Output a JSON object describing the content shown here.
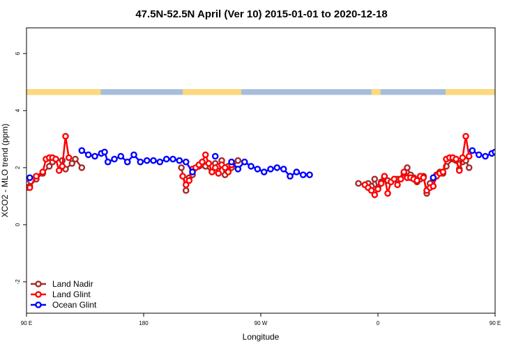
{
  "chart_data": {
    "type": "line",
    "title": "47.5N-52.5N April (Ver 10)   2015-01-01 to 2020-12-18",
    "xlabel": "Longitude",
    "ylabel": "XCO2 - MLO trend (ppm)",
    "xlim": [
      90,
      450
    ],
    "ylim": [
      -3.1,
      6.9
    ],
    "x_ticks": [
      {
        "value": 90,
        "label": "90 E"
      },
      {
        "value": 180,
        "label": "180"
      },
      {
        "value": 270,
        "label": "90 W"
      },
      {
        "value": 360,
        "label": "0"
      },
      {
        "value": 450,
        "label": "90 E"
      },
      {
        "value": 540,
        "label": "180"
      }
    ],
    "y_ticks": [
      {
        "value": -2,
        "label": "-2"
      },
      {
        "value": 0,
        "label": "0"
      },
      {
        "value": 2,
        "label": "2"
      },
      {
        "value": 4,
        "label": "4"
      },
      {
        "value": 6,
        "label": "6"
      }
    ],
    "legend_position": "bottom-left",
    "land_sea_band": {
      "y_range": [
        4.55,
        4.75
      ],
      "land_color": "#fcd97a",
      "ocean_color": "#a6bddb",
      "land_segments": [
        [
          90,
          147
        ],
        [
          210,
          255
        ],
        [
          355,
          362
        ],
        [
          412,
          450
        ],
        [
          450,
          477
        ]
      ]
    },
    "series": [
      {
        "name": "Land Nadir",
        "color": "#a52a2a",
        "points": [
          [
            90,
            1.45
          ],
          [
            92.5,
            1.35
          ],
          [
            97.5,
            1.6
          ],
          [
            102.5,
            1.8
          ],
          [
            107.5,
            2.05
          ],
          [
            110,
            2.2
          ],
          [
            112.5,
            2.3
          ],
          [
            117.5,
            2.25
          ],
          [
            120,
            1.95
          ],
          [
            125,
            2.15
          ],
          [
            127.5,
            2.3
          ],
          [
            132.5,
            2.0
          ],
          [
            209,
            2.0
          ],
          [
            212.5,
            1.2
          ],
          [
            215,
            1.65
          ],
          [
            217.5,
            1.75
          ],
          [
            222.5,
            2.05
          ],
          [
            225,
            2.1
          ],
          [
            227.5,
            2.05
          ],
          [
            232.5,
            1.85
          ],
          [
            235,
            2.15
          ],
          [
            237.5,
            2.05
          ],
          [
            240,
            2.25
          ],
          [
            242.5,
            1.75
          ],
          [
            245,
            2.05
          ],
          [
            247.5,
            2.0
          ],
          [
            252.5,
            2.25
          ],
          [
            345,
            1.45
          ],
          [
            350,
            1.4
          ],
          [
            352.5,
            1.45
          ],
          [
            355,
            1.35
          ],
          [
            357.5,
            1.6
          ],
          [
            360,
            1.3
          ],
          [
            362.5,
            1.5
          ],
          [
            365,
            1.65
          ],
          [
            367.5,
            1.55
          ],
          [
            375,
            1.6
          ],
          [
            380,
            1.8
          ],
          [
            382.5,
            2.0
          ],
          [
            385,
            1.75
          ],
          [
            387.5,
            1.65
          ],
          [
            390,
            1.5
          ],
          [
            392.5,
            1.6
          ],
          [
            395,
            1.7
          ],
          [
            397.5,
            1.1
          ],
          [
            400,
            1.45
          ],
          [
            402.5,
            1.6
          ],
          [
            405,
            1.75
          ],
          [
            407.5,
            1.85
          ],
          [
            410,
            1.8
          ],
          [
            412.5,
            2.05
          ],
          [
            417.5,
            2.3
          ],
          [
            420,
            2.25
          ],
          [
            422.5,
            1.95
          ],
          [
            425,
            2.2
          ],
          [
            427.5,
            2.25
          ],
          [
            430,
            2.0
          ]
        ]
      },
      {
        "name": "Land Glint",
        "color": "#ff0000",
        "points": [
          [
            90,
            1.3
          ],
          [
            92.5,
            1.3
          ],
          [
            97.5,
            1.7
          ],
          [
            102.5,
            1.85
          ],
          [
            105,
            2.3
          ],
          [
            107.5,
            2.35
          ],
          [
            110,
            2.35
          ],
          [
            112.5,
            2.3
          ],
          [
            115,
            1.9
          ],
          [
            117.5,
            2.05
          ],
          [
            120,
            3.1
          ],
          [
            122.5,
            2.35
          ],
          [
            210,
            1.7
          ],
          [
            212.5,
            1.4
          ],
          [
            215,
            1.55
          ],
          [
            217.5,
            1.95
          ],
          [
            220,
            2.0
          ],
          [
            222.5,
            2.1
          ],
          [
            225,
            2.2
          ],
          [
            227.5,
            2.45
          ],
          [
            230,
            2.15
          ],
          [
            232.5,
            1.85
          ],
          [
            235,
            2.0
          ],
          [
            237.5,
            1.8
          ],
          [
            240,
            2.1
          ],
          [
            242.5,
            2.0
          ],
          [
            245,
            1.85
          ],
          [
            247.5,
            2.1
          ],
          [
            350,
            1.4
          ],
          [
            352.5,
            1.3
          ],
          [
            355,
            1.2
          ],
          [
            357.5,
            1.05
          ],
          [
            360,
            1.25
          ],
          [
            362.5,
            1.45
          ],
          [
            365,
            1.7
          ],
          [
            367.5,
            1.1
          ],
          [
            370,
            1.5
          ],
          [
            372.5,
            1.6
          ],
          [
            375,
            1.4
          ],
          [
            377.5,
            1.6
          ],
          [
            380,
            1.85
          ],
          [
            382.5,
            1.65
          ],
          [
            385,
            1.65
          ],
          [
            387.5,
            1.6
          ],
          [
            390,
            1.55
          ],
          [
            392.5,
            1.7
          ],
          [
            395,
            1.65
          ],
          [
            397.5,
            1.2
          ],
          [
            400,
            1.3
          ],
          [
            402.5,
            1.35
          ],
          [
            405,
            1.7
          ],
          [
            407.5,
            1.8
          ],
          [
            410,
            1.85
          ],
          [
            412.5,
            2.3
          ],
          [
            415,
            2.35
          ],
          [
            417.5,
            2.35
          ],
          [
            420,
            2.3
          ],
          [
            422.5,
            1.9
          ],
          [
            425,
            2.35
          ],
          [
            427.5,
            3.1
          ],
          [
            430,
            2.4
          ]
        ]
      },
      {
        "name": "Ocean Glint",
        "color": "#0000ff",
        "points": [
          [
            92.5,
            1.65
          ],
          [
            132.5,
            2.6
          ],
          [
            137.5,
            2.45
          ],
          [
            142.5,
            2.4
          ],
          [
            147.5,
            2.5
          ],
          [
            150,
            2.55
          ],
          [
            152.5,
            2.2
          ],
          [
            157.5,
            2.3
          ],
          [
            162.5,
            2.4
          ],
          [
            167.5,
            2.2
          ],
          [
            172.5,
            2.45
          ],
          [
            177.5,
            2.2
          ],
          [
            182.5,
            2.25
          ],
          [
            187.5,
            2.25
          ],
          [
            192.5,
            2.2
          ],
          [
            197.5,
            2.3
          ],
          [
            202.5,
            2.3
          ],
          [
            207.5,
            2.25
          ],
          [
            212.5,
            2.2
          ],
          [
            217.5,
            1.85
          ],
          [
            235,
            2.4
          ],
          [
            247.5,
            2.2
          ],
          [
            252.5,
            1.95
          ],
          [
            257.5,
            2.2
          ],
          [
            262.5,
            2.05
          ],
          [
            267.5,
            1.95
          ],
          [
            272.5,
            1.85
          ],
          [
            277.5,
            1.95
          ],
          [
            282.5,
            2.0
          ],
          [
            287.5,
            1.95
          ],
          [
            292.5,
            1.7
          ],
          [
            297.5,
            1.85
          ],
          [
            302.5,
            1.75
          ],
          [
            307.5,
            1.75
          ],
          [
            402.5,
            1.65
          ],
          [
            432.5,
            2.6
          ],
          [
            437.5,
            2.45
          ],
          [
            442.5,
            2.4
          ],
          [
            447.5,
            2.5
          ],
          [
            450,
            2.55
          ],
          [
            452.5,
            2.2
          ],
          [
            457.5,
            2.3
          ],
          [
            462.5,
            2.4
          ]
        ]
      }
    ]
  }
}
